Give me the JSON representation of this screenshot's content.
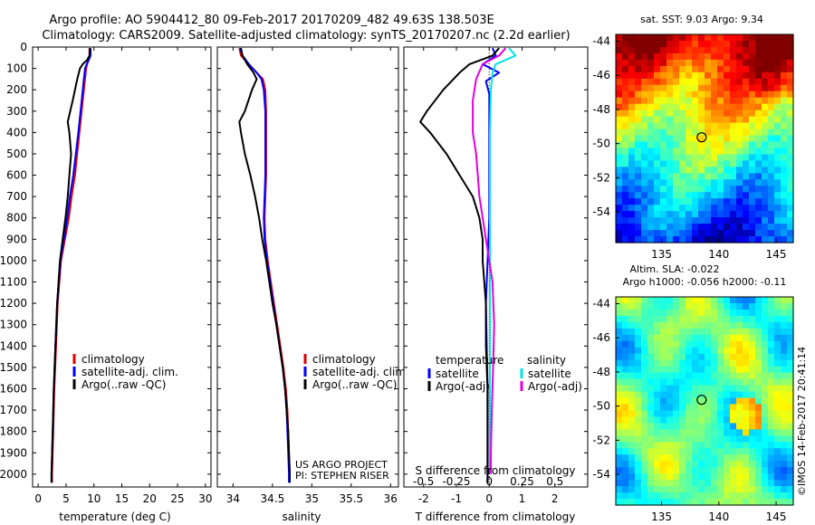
{
  "header": {
    "line1": "Argo profile: AO 5904412_80 09-Feb-2017 20170209_482 49.63S 138.503E",
    "line2": "Climatology: CARS2009. Satellite-adjusted climatology: synTS_20170207.nc (2.2d earlier)"
  },
  "colors": {
    "climatology": "#e00000",
    "satellite": "#0000ff",
    "argo": "#000000",
    "satellite_salinity": "#00e5e5",
    "argo_salinity": "#e000e0"
  },
  "chart_data": [
    {
      "type": "line",
      "xlabel": "temperature (deg C)",
      "xlim": [
        -1,
        31
      ],
      "ylim": [
        0,
        2060
      ],
      "y_reversed": true,
      "xticks": [
        "0",
        "5",
        "10",
        "15",
        "20",
        "25",
        "30"
      ],
      "yticks": [
        "0",
        "100",
        "200",
        "300",
        "400",
        "500",
        "600",
        "700",
        "800",
        "900",
        "1000",
        "1100",
        "1200",
        "1300",
        "1400",
        "1500",
        "1600",
        "1700",
        "1800",
        "1900",
        "2000"
      ],
      "legend": [
        "climatology",
        "satellite-adj. clim.",
        "Argo(..raw -QC)"
      ],
      "series": [
        {
          "name": "climatology",
          "color": "#e00000",
          "points": [
            [
              9.2,
              5
            ],
            [
              9.2,
              40
            ],
            [
              9.0,
              60
            ],
            [
              8.8,
              80
            ],
            [
              8.6,
              100
            ],
            [
              8.4,
              150
            ],
            [
              8.0,
              250
            ],
            [
              7.4,
              400
            ],
            [
              6.6,
              600
            ],
            [
              6.0,
              700
            ],
            [
              5.5,
              800
            ],
            [
              4.8,
              900
            ],
            [
              4.1,
              1000
            ],
            [
              3.5,
              1200
            ],
            [
              3.2,
              1400
            ],
            [
              2.9,
              1600
            ],
            [
              2.7,
              1800
            ],
            [
              2.5,
              2000
            ],
            [
              2.5,
              2040
            ]
          ]
        },
        {
          "name": "satellite-adj. clim.",
          "color": "#0000ff",
          "points": [
            [
              9.4,
              5
            ],
            [
              9.4,
              40
            ],
            [
              9.1,
              60
            ],
            [
              8.7,
              80
            ],
            [
              8.4,
              100
            ],
            [
              8.2,
              150
            ],
            [
              7.8,
              250
            ],
            [
              7.2,
              400
            ],
            [
              6.3,
              600
            ],
            [
              5.7,
              700
            ],
            [
              5.2,
              800
            ],
            [
              4.6,
              900
            ],
            [
              4.0,
              1000
            ],
            [
              3.4,
              1200
            ],
            [
              3.1,
              1400
            ],
            [
              2.8,
              1600
            ],
            [
              2.6,
              1800
            ],
            [
              2.4,
              2000
            ],
            [
              2.4,
              2040
            ]
          ]
        },
        {
          "name": "Argo(..raw -QC)",
          "color": "#000000",
          "points": [
            [
              9.3,
              5
            ],
            [
              9.2,
              40
            ],
            [
              8.8,
              60
            ],
            [
              8.0,
              80
            ],
            [
              7.5,
              100
            ],
            [
              7.0,
              150
            ],
            [
              6.2,
              250
            ],
            [
              5.3,
              350
            ],
            [
              5.6,
              400
            ],
            [
              5.9,
              500
            ],
            [
              5.6,
              600
            ],
            [
              5.3,
              700
            ],
            [
              4.9,
              800
            ],
            [
              4.4,
              900
            ],
            [
              3.9,
              1000
            ],
            [
              3.4,
              1200
            ],
            [
              3.1,
              1400
            ],
            [
              2.8,
              1600
            ],
            [
              2.6,
              1800
            ],
            [
              2.4,
              2000
            ],
            [
              2.4,
              2040
            ]
          ]
        }
      ]
    },
    {
      "type": "line",
      "xlabel": "salinity",
      "xlim": [
        33.8,
        36.1
      ],
      "ylim": [
        0,
        2060
      ],
      "y_reversed": true,
      "xticks": [
        "34",
        "34.5",
        "35",
        "35.5",
        "36"
      ],
      "legend": [
        "climatology",
        "satellite-adj. clim.",
        "Argo(..raw -QC)"
      ],
      "annotation": [
        "US ARGO PROJECT",
        "PI: STEPHEN RISER"
      ],
      "series": [
        {
          "name": "climatology",
          "color": "#e00000",
          "points": [
            [
              34.08,
              5
            ],
            [
              34.1,
              40
            ],
            [
              34.2,
              80
            ],
            [
              34.3,
              120
            ],
            [
              34.38,
              150
            ],
            [
              34.41,
              200
            ],
            [
              34.42,
              300
            ],
            [
              34.42,
              400
            ],
            [
              34.42,
              500
            ],
            [
              34.42,
              600
            ],
            [
              34.41,
              700
            ],
            [
              34.4,
              800
            ],
            [
              34.41,
              900
            ],
            [
              34.44,
              1000
            ],
            [
              34.48,
              1100
            ],
            [
              34.52,
              1200
            ],
            [
              34.56,
              1300
            ],
            [
              34.6,
              1400
            ],
            [
              34.64,
              1500
            ],
            [
              34.67,
              1600
            ],
            [
              34.69,
              1700
            ],
            [
              34.7,
              1800
            ],
            [
              34.71,
              1900
            ],
            [
              34.72,
              2000
            ],
            [
              34.72,
              2040
            ]
          ]
        },
        {
          "name": "satellite-adj. clim.",
          "color": "#0000ff",
          "points": [
            [
              34.09,
              5
            ],
            [
              34.12,
              40
            ],
            [
              34.2,
              80
            ],
            [
              34.3,
              120
            ],
            [
              34.36,
              150
            ],
            [
              34.39,
              200
            ],
            [
              34.41,
              300
            ],
            [
              34.41,
              400
            ],
            [
              34.41,
              500
            ],
            [
              34.41,
              600
            ],
            [
              34.4,
              700
            ],
            [
              34.39,
              800
            ],
            [
              34.4,
              900
            ],
            [
              34.43,
              1000
            ],
            [
              34.47,
              1100
            ],
            [
              34.51,
              1200
            ],
            [
              34.55,
              1300
            ],
            [
              34.59,
              1400
            ],
            [
              34.63,
              1500
            ],
            [
              34.66,
              1600
            ],
            [
              34.68,
              1700
            ],
            [
              34.69,
              1800
            ],
            [
              34.7,
              1900
            ],
            [
              34.71,
              2000
            ],
            [
              34.71,
              2040
            ]
          ]
        },
        {
          "name": "Argo(..raw -QC)",
          "color": "#000000",
          "points": [
            [
              34.1,
              5
            ],
            [
              34.12,
              40
            ],
            [
              34.18,
              80
            ],
            [
              34.26,
              120
            ],
            [
              34.3,
              150
            ],
            [
              34.24,
              200
            ],
            [
              34.15,
              300
            ],
            [
              34.08,
              350
            ],
            [
              34.1,
              400
            ],
            [
              34.15,
              500
            ],
            [
              34.22,
              600
            ],
            [
              34.28,
              700
            ],
            [
              34.33,
              800
            ],
            [
              34.37,
              900
            ],
            [
              34.42,
              1000
            ],
            [
              34.46,
              1100
            ],
            [
              34.5,
              1200
            ],
            [
              34.55,
              1300
            ],
            [
              34.59,
              1400
            ],
            [
              34.63,
              1500
            ],
            [
              34.66,
              1600
            ],
            [
              34.68,
              1700
            ],
            [
              34.7,
              1800
            ],
            [
              34.71,
              1900
            ],
            [
              34.72,
              2000
            ],
            [
              34.72,
              2040
            ]
          ]
        }
      ]
    },
    {
      "type": "line",
      "xlabel": "T difference from climatology",
      "xlabel2": "S difference from climatology",
      "xlim": [
        -2.6,
        3.0
      ],
      "xticks": [
        "-2",
        "-1",
        "0",
        "1",
        "2"
      ],
      "xticks_S": [
        "-0.5",
        "-0.25",
        "0",
        "0.25",
        "0.5"
      ],
      "ylim": [
        0,
        2060
      ],
      "y_reversed": true,
      "legend_headers": [
        "temperature",
        "salinity"
      ],
      "legend": [
        "satellite",
        "Argo(-adj)",
        "satellite",
        "Argo(-adj)"
      ],
      "series": [
        {
          "name": "satellite",
          "color": "#0000ff",
          "points": [
            [
              0.1,
              5
            ],
            [
              0.2,
              40
            ],
            [
              -0.2,
              80
            ],
            [
              0.3,
              120
            ],
            [
              -0.1,
              160
            ],
            [
              0,
              220
            ],
            [
              0,
              400
            ],
            [
              0,
              800
            ],
            [
              -0.1,
              1200
            ],
            [
              -0.05,
              1600
            ],
            [
              -0.05,
              2000
            ],
            [
              -0.05,
              2040
            ]
          ]
        },
        {
          "name": "Argo(-adj)",
          "color": "#000000",
          "points": [
            [
              0.3,
              5
            ],
            [
              0.1,
              40
            ],
            [
              -0.6,
              80
            ],
            [
              -0.9,
              120
            ],
            [
              -1.4,
              200
            ],
            [
              -1.9,
              300
            ],
            [
              -2.1,
              350
            ],
            [
              -1.8,
              400
            ],
            [
              -1.3,
              500
            ],
            [
              -0.9,
              600
            ],
            [
              -0.5,
              700
            ],
            [
              -0.3,
              800
            ],
            [
              -0.2,
              900
            ],
            [
              -0.2,
              1000
            ],
            [
              -0.1,
              1200
            ],
            [
              -0.1,
              1400
            ],
            [
              -0.05,
              1600
            ],
            [
              -0.05,
              1800
            ],
            [
              -0.05,
              2000
            ],
            [
              -0.05,
              2040
            ]
          ]
        },
        {
          "name": "satellite",
          "color": "#00e5e5",
          "points": [
            [
              0.6,
              5
            ],
            [
              0.8,
              40
            ],
            [
              0.2,
              80
            ],
            [
              0.1,
              120
            ],
            [
              0.05,
              200
            ],
            [
              0.02,
              400
            ],
            [
              0.02,
              800
            ],
            [
              0.02,
              1200
            ],
            [
              0.02,
              1600
            ],
            [
              0.02,
              2000
            ]
          ]
        },
        {
          "name": "Argo(-adj)",
          "color": "#e000e0",
          "points": [
            [
              0.5,
              5
            ],
            [
              0.3,
              40
            ],
            [
              -0.2,
              80
            ],
            [
              -0.4,
              150
            ],
            [
              -0.5,
              250
            ],
            [
              -0.5,
              400
            ],
            [
              -0.4,
              500
            ],
            [
              -0.3,
              700
            ],
            [
              -0.1,
              900
            ],
            [
              0.1,
              1100
            ],
            [
              0.15,
              1300
            ],
            [
              0.12,
              1500
            ],
            [
              0.08,
              1700
            ],
            [
              0.05,
              1900
            ],
            [
              0.05,
              2000
            ]
          ]
        }
      ]
    },
    {
      "type": "heatmap",
      "title": "sat. SST: 9.03 Argo: 9.34",
      "xlim": [
        131,
        146.5
      ],
      "ylim": [
        -55.8,
        -43.6
      ],
      "xticks": [
        "135",
        "140",
        "145"
      ],
      "yticks": [
        "-44",
        "-46",
        "-48",
        "-50",
        "-52",
        "-54"
      ],
      "marker": [
        138.5,
        -49.63
      ]
    },
    {
      "type": "heatmap",
      "title": "Altim. SLA: -0.022",
      "subtitle": "Argo h1000: -0.056 h2000: -0.11",
      "xlim": [
        131,
        146.5
      ],
      "ylim": [
        -55.8,
        -43.6
      ],
      "xticks": [
        "135",
        "140",
        "145"
      ],
      "yticks": [
        "-44",
        "-46",
        "-48",
        "-50",
        "-52",
        "-54"
      ],
      "marker": [
        138.5,
        -49.63
      ]
    }
  ],
  "footer": {
    "credit": "©IMOS 14-Feb-2017 20:41:14"
  }
}
